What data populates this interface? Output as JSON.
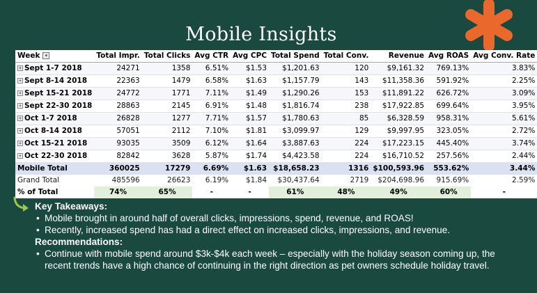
{
  "title": "Mobile Insights",
  "colors": {
    "background": "#1a4a3f",
    "accent_star": "#e8692b",
    "arrow": "#9dc54a"
  },
  "table": {
    "headers": [
      "Week",
      "Total Impr.",
      "Total Clicks",
      "Avg CTR",
      "Avg CPC",
      "Total Spend",
      "Total Conv.",
      "Revenue",
      "Avg ROAS",
      "Avg Conv. Rate"
    ],
    "rows": [
      [
        "Sept 1-7 2018",
        "24271",
        "1358",
        "6.51%",
        "$1.53",
        "$1,201.63",
        "120",
        "$9,161.32",
        "769.13%",
        "3.83%"
      ],
      [
        "Sept 8-14 2018",
        "22363",
        "1479",
        "6.58%",
        "$1.63",
        "$1,157.79",
        "143",
        "$11,358.36",
        "591.92%",
        "2.25%"
      ],
      [
        "Sept 15-21 2018",
        "24772",
        "1771",
        "7.11%",
        "$1.49",
        "$1,290.26",
        "153",
        "$11,891.22",
        "626.72%",
        "3.09%"
      ],
      [
        "Sept 22-30 2018",
        "28863",
        "2145",
        "6.91%",
        "$1.48",
        "$1,816.74",
        "238",
        "$17,922.85",
        "699.64%",
        "3.95%"
      ],
      [
        "Oct 1-7 2018",
        "26828",
        "1277",
        "7.71%",
        "$1.57",
        "$1,780.63",
        "85",
        "$6,328.59",
        "958.31%",
        "5.61%"
      ],
      [
        "Oct 8-14 2018",
        "57051",
        "2112",
        "7.10%",
        "$1.81",
        "$3,099.97",
        "129",
        "$9,997.95",
        "323.05%",
        "2.72%"
      ],
      [
        "Oct 15-21 2018",
        "93035",
        "3509",
        "6.12%",
        "$1.64",
        "$3,887.63",
        "224",
        "$17,223.15",
        "445.40%",
        "3.74%"
      ],
      [
        "Oct 22-30 2018",
        "82842",
        "3628",
        "5.87%",
        "$1.74",
        "$4,423.58",
        "224",
        "$16,710.52",
        "257.56%",
        "2.44%"
      ]
    ],
    "mobile_total": [
      "Mobile Total",
      "360025",
      "17279",
      "6.69%",
      "$1.63",
      "$18,658.23",
      "1316",
      "$100,593.96",
      "553.62%",
      "3.44%"
    ],
    "grand_total": [
      "Grand Total",
      "485596",
      "26623",
      "6.19%",
      "$1.84",
      "$30,437.64",
      "2719",
      "$204,698.96",
      "915.69%",
      "2.59%"
    ],
    "pct_of_total": [
      "% of Total",
      "74%",
      "65%",
      "-",
      "-",
      "61%",
      "48%",
      "49%",
      "60%",
      "-"
    ]
  },
  "notes": {
    "takeaways_heading": "Key Takeaways:",
    "takeaways": [
      "Mobile brought in around half of overall clicks, impressions, spend, revenue, and ROAS!",
      "Recently, increased spend has had a direct effect on increased clicks, impressions, and revenue."
    ],
    "recommendations_heading": "Recommendations:",
    "recommendations": [
      "Continue with mobile spend around $3k-$4k each week – especially with the holiday season coming up, the recent trends have a high chance of continuing in the right direction as pet owners schedule holiday travel."
    ]
  }
}
